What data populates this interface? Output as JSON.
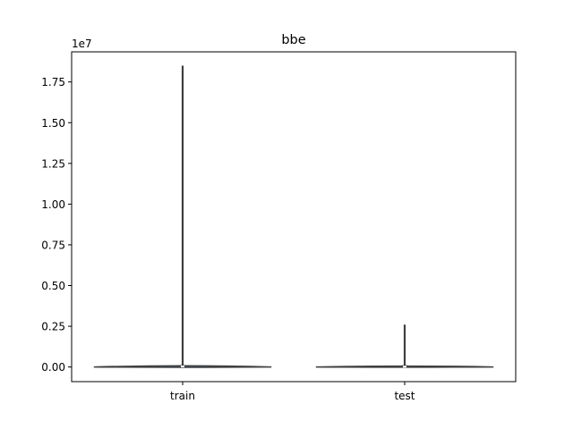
{
  "chart_data": {
    "type": "violin",
    "title": "bbe",
    "xlabel": "",
    "ylabel": "",
    "y_offset_label": "1e7",
    "categories": [
      "train",
      "test"
    ],
    "ylim": [
      -900000,
      19350000
    ],
    "yticks": [
      0,
      2500000,
      5000000,
      7500000,
      10000000,
      12500000,
      15000000,
      17500000
    ],
    "ytick_labels": [
      "0.00",
      "0.25",
      "0.50",
      "0.75",
      "1.00",
      "1.25",
      "1.50",
      "1.75"
    ],
    "grid": false,
    "series": [
      {
        "category": "train",
        "min": 0,
        "q1": 0,
        "median": 30000,
        "q3": 60000,
        "max": 18500000,
        "color": "#3a75a6"
      },
      {
        "category": "test",
        "min": 0,
        "q1": 0,
        "median": 20000,
        "q3": 40000,
        "max": 2600000,
        "color": "#3a75a6"
      }
    ],
    "colors": {
      "violin_fill": "#3a75a6",
      "violin_edge": "#3f3f3f",
      "box": "#3f3f3f",
      "median_marker": "#ffffff"
    }
  }
}
